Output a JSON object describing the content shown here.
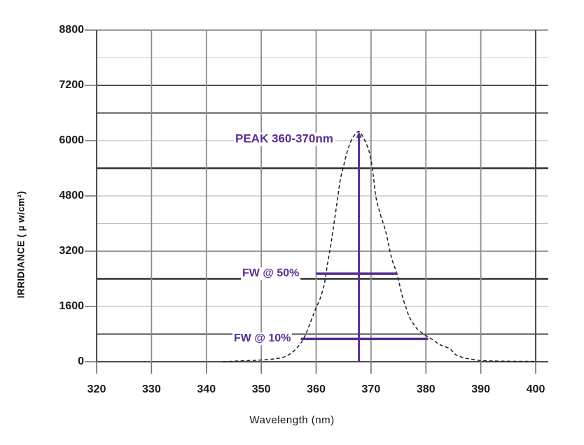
{
  "chart_data": {
    "type": "line",
    "title": "",
    "xlabel": "Wavelength  (nm)",
    "ylabel": "IRRIDIANCE   ( µ w/cm²)",
    "x_ticks": [
      320,
      330,
      340,
      350,
      360,
      370,
      380,
      390,
      400
    ],
    "y_ticks": [
      0,
      1600,
      3200,
      4800,
      6000,
      7200,
      8800
    ],
    "xlim": [
      320,
      400
    ],
    "ylim_labels": [
      0,
      8800
    ],
    "grid": {
      "horizontal_lines": [
        {
          "v": 0,
          "shade": "dark"
        },
        {
          "v": 800,
          "shade": "dark"
        },
        {
          "v": 1600,
          "shade": "light"
        },
        {
          "v": 2400,
          "shade": "xdark"
        },
        {
          "v": 3200,
          "shade": "medium"
        },
        {
          "v": 4000,
          "shade": "light"
        },
        {
          "v": 4800,
          "shade": "light"
        },
        {
          "v": 5400,
          "shade": "xdark"
        },
        {
          "v": 6000,
          "shade": "light"
        },
        {
          "v": 6600,
          "shade": "dark"
        },
        {
          "v": 7200,
          "shade": "dark"
        },
        {
          "v": 8000,
          "shade": "xlight"
        },
        {
          "v": 8800,
          "shade": "medium"
        }
      ],
      "vertical_lines": [
        {
          "nm": 320,
          "shade": "dark"
        },
        {
          "nm": 330,
          "shade": "medium"
        },
        {
          "nm": 340,
          "shade": "medium"
        },
        {
          "nm": 350,
          "shade": "medium"
        },
        {
          "nm": 360,
          "shade": "medium"
        },
        {
          "nm": 370,
          "shade": "medium"
        },
        {
          "nm": 380,
          "shade": "medium"
        },
        {
          "nm": 390,
          "shade": "medium"
        },
        {
          "nm": 400,
          "shade": "dark"
        }
      ]
    },
    "series": [
      {
        "name": "irradiance-spectrum",
        "style": "dashed",
        "points": [
          [
            343,
            0
          ],
          [
            344.5,
            10
          ],
          [
            346,
            25
          ],
          [
            348,
            35
          ],
          [
            350,
            50
          ],
          [
            352,
            75
          ],
          [
            353.5,
            110
          ],
          [
            354.5,
            160
          ],
          [
            355.5,
            250
          ],
          [
            356.5,
            400
          ],
          [
            357.3,
            560
          ],
          [
            358,
            760
          ],
          [
            358.7,
            1030
          ],
          [
            359.3,
            1280
          ],
          [
            359.9,
            1530
          ],
          [
            360.7,
            1820
          ],
          [
            361.5,
            2260
          ],
          [
            362.1,
            2870
          ],
          [
            362.7,
            3400
          ],
          [
            363.2,
            3950
          ],
          [
            363.8,
            4600
          ],
          [
            364.4,
            5150
          ],
          [
            364.9,
            5400
          ],
          [
            365.8,
            5820
          ],
          [
            366.6,
            6050
          ],
          [
            367.2,
            6150
          ],
          [
            367.8,
            6200
          ],
          [
            368.4,
            6110
          ],
          [
            369.0,
            5970
          ],
          [
            369.8,
            5700
          ],
          [
            370.4,
            5250
          ],
          [
            370.9,
            4760
          ],
          [
            371.7,
            4270
          ],
          [
            372.6,
            3810
          ],
          [
            373.2,
            3390
          ],
          [
            373.8,
            2970
          ],
          [
            374.7,
            2560
          ],
          [
            375.1,
            2300
          ],
          [
            375.7,
            1900
          ],
          [
            376.4,
            1560
          ],
          [
            377.0,
            1290
          ],
          [
            378.1,
            1010
          ],
          [
            378.8,
            890
          ],
          [
            379.8,
            780
          ],
          [
            381.2,
            640
          ],
          [
            382.5,
            500
          ],
          [
            384.3,
            380
          ],
          [
            385.4,
            210
          ],
          [
            386.6,
            130
          ],
          [
            388,
            80
          ],
          [
            390,
            35
          ],
          [
            392,
            22
          ],
          [
            394,
            16
          ],
          [
            396,
            12
          ],
          [
            398,
            10
          ],
          [
            400,
            8
          ]
        ]
      }
    ],
    "annotations": {
      "peak": {
        "text": "PEAK 360-370nm",
        "nm": 367.8,
        "value_top": 6200,
        "value_bottom": 0
      },
      "fw50": {
        "text": "FW @ 50%",
        "x1_nm": 360.0,
        "x2_nm": 374.8,
        "value": 2550
      },
      "fw10": {
        "text": "FW @ 10%",
        "x1_nm": 357.2,
        "x2_nm": 380.4,
        "value": 660
      }
    },
    "colors": {
      "annotation_purple": "#5b2d91",
      "curve": "#1c1c1c",
      "grid_xlight": "#dcdcdc",
      "grid_light": "#bfbfbf",
      "grid_medium": "#8c8c8c",
      "grid_dark": "#4d4d4d",
      "grid_xdark": "#2f2f2f",
      "tick": "#6e6e6e"
    }
  }
}
